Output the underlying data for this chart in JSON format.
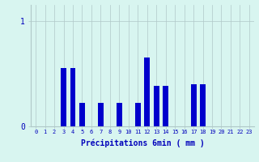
{
  "categories": [
    0,
    1,
    2,
    3,
    4,
    5,
    6,
    7,
    8,
    9,
    10,
    11,
    12,
    13,
    14,
    15,
    16,
    17,
    18,
    19,
    20,
    21,
    22,
    23
  ],
  "values": [
    0,
    0,
    0,
    0.55,
    0.55,
    0.22,
    0,
    0.22,
    0,
    0.22,
    0,
    0.22,
    0.65,
    0.38,
    0.38,
    0,
    0,
    0.4,
    0.4,
    0,
    0,
    0,
    0,
    0
  ],
  "bar_color": "#0000cc",
  "background_color": "#d8f5f0",
  "grid_color": "#b0c8c8",
  "xlabel": "Précipitations 6min ( mm )",
  "ytick_labels": [
    "0",
    "1"
  ],
  "ytick_vals": [
    0,
    1
  ],
  "ylim": [
    0,
    1.15
  ],
  "xlim": [
    -0.5,
    23.5
  ],
  "axis_color": "#0000bb",
  "xlabel_color": "#0000bb",
  "bar_width": 0.6
}
